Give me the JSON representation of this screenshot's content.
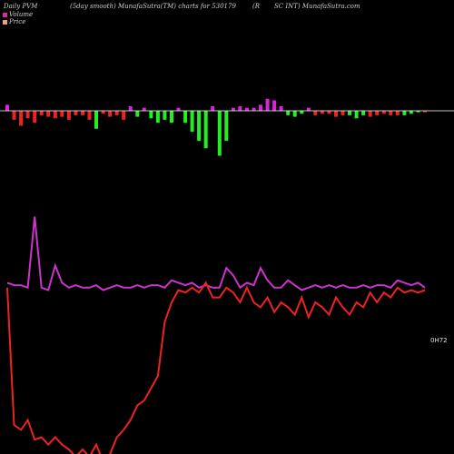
{
  "header": {
    "left": "Daily PVM",
    "smoothing": "(5day smooth) MunafaSutra(TM) charts for 530179",
    "company_part1": "(R",
    "company_part2": "SC INT) MunafaSutra.com"
  },
  "legend": [
    {
      "label": "Volume",
      "color": "#cc3399"
    },
    {
      "label": "Price",
      "color": "#f0a080"
    }
  ],
  "last_value_label": "0H72",
  "colors": {
    "background": "#000000",
    "baseline": "#ffffff",
    "bar_up": "#22ee22",
    "bar_down": "#ee2222",
    "bar_neutral": "#dd22dd",
    "volume_line": "#cc33cc",
    "price_line": "#ee2222"
  },
  "chart_data": {
    "type": "bar",
    "title": "",
    "note": "Top panel: signed bars around a zero baseline. Bottom panel: two normalized lines (volume in magenta, price in red). Values are unitless normalized levels.",
    "bars": {
      "direction": [
        "neutral",
        "down",
        "down",
        "down",
        "down",
        "down",
        "down",
        "down",
        "down",
        "down",
        "down",
        "down",
        "down",
        "up",
        "down",
        "down",
        "down",
        "down",
        "neutral",
        "up",
        "neutral",
        "up",
        "up",
        "up",
        "up",
        "neutral",
        "up",
        "up",
        "up",
        "up",
        "neutral",
        "up",
        "up",
        "neutral",
        "neutral",
        "neutral",
        "neutral",
        "neutral",
        "neutral",
        "neutral",
        "neutral",
        "up",
        "up",
        "up",
        "neutral",
        "down",
        "down",
        "down",
        "down",
        "down",
        "up",
        "up",
        "up",
        "down",
        "down",
        "down",
        "down",
        "down",
        "up",
        "up",
        "up",
        "down"
      ],
      "values": [
        4,
        -6,
        -10,
        -5,
        -8,
        -3,
        -4,
        -5,
        -4,
        -6,
        -3,
        -3,
        -6,
        -12,
        -2,
        -4,
        -3,
        -6,
        3,
        -4,
        2,
        -5,
        -8,
        -6,
        -8,
        2,
        -8,
        -14,
        -20,
        -25,
        3,
        -30,
        -20,
        2,
        3,
        2,
        2,
        4,
        8,
        7,
        3,
        -3,
        -4,
        -2,
        2,
        -3,
        -2,
        -2,
        -4,
        -3,
        -3,
        -5,
        -3,
        -4,
        -3,
        -2,
        -3,
        -3,
        -3,
        -2,
        -1,
        -1
      ]
    },
    "volume_line": [
      68,
      67,
      67,
      66,
      95,
      66,
      65,
      75,
      68,
      66,
      67,
      66,
      66,
      67,
      65,
      66,
      67,
      66,
      66,
      67,
      66,
      67,
      67,
      66,
      69,
      68,
      67,
      68,
      66,
      67,
      66,
      66,
      74,
      71,
      66,
      68,
      67,
      74,
      69,
      66,
      66,
      69,
      67,
      65,
      66,
      67,
      66,
      67,
      66,
      67,
      66,
      66,
      67,
      66,
      67,
      67,
      66,
      69,
      68,
      67,
      68,
      66
    ],
    "price_line": [
      66,
      10,
      8,
      12,
      4,
      5,
      2,
      5,
      2,
      0,
      -3,
      0,
      -3,
      2,
      -5,
      -2,
      5,
      8,
      12,
      18,
      20,
      25,
      30,
      52,
      60,
      65,
      64,
      66,
      64,
      68,
      62,
      62,
      66,
      64,
      60,
      66,
      60,
      58,
      62,
      56,
      60,
      58,
      55,
      62,
      54,
      60,
      58,
      55,
      62,
      58,
      55,
      60,
      58,
      64,
      60,
      64,
      62,
      66,
      64,
      65,
      64,
      65
    ]
  }
}
